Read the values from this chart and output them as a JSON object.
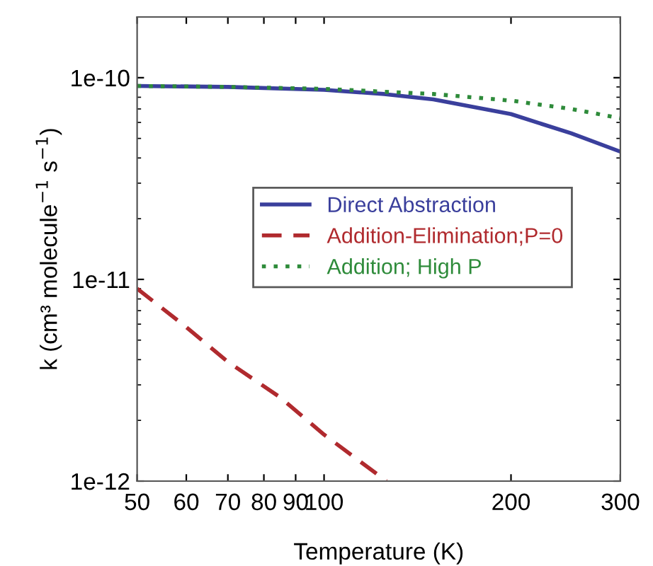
{
  "chart_data": {
    "type": "line",
    "xlabel": "Temperature (K)",
    "ylabel": "k (cm³ molecule$^{−1}$ s$^{−1}$)",
    "log": "xy",
    "xlim": [
      50,
      300
    ],
    "xticks": [
      50,
      60,
      70,
      80,
      90,
      100,
      200,
      300
    ],
    "ylim": [
      1e-12,
      2e-10
    ],
    "yticks": [
      {
        "value": 1e-12,
        "label": "1e-12"
      },
      {
        "value": 1e-11,
        "label": "1e-11"
      },
      {
        "value": 1e-10,
        "label": "1e-10"
      }
    ],
    "legend": "center",
    "grid": false,
    "marker": "none",
    "series": [
      {
        "name": "Direct Abstraction",
        "color": "#3a3f9c",
        "line_style": "solid",
        "x": [
          50,
          70,
          100,
          125,
          150,
          200,
          250,
          300
        ],
        "values": [
          9.1e-11,
          9e-11,
          8.7e-11,
          8.3e-11,
          7.8e-11,
          6.6e-11,
          5.3e-11,
          4.3e-11
        ]
      },
      {
        "name": "Addition-Elimination;P=0",
        "color": "#b02a2e",
        "line_style": "dashed",
        "x": [
          50,
          60,
          70,
          85,
          100,
          126
        ],
        "values": [
          9e-12,
          5.8e-12,
          3.9e-12,
          2.6e-12,
          1.7e-12,
          1e-12
        ]
      },
      {
        "name": "Addition; High P",
        "color": "#2e8b3a",
        "line_style": "dotted",
        "x": [
          50,
          70,
          100,
          150,
          200,
          250,
          300
        ],
        "values": [
          9.1e-11,
          9e-11,
          8.8e-11,
          8.3e-11,
          7.7e-11,
          7e-11,
          6.3e-11
        ]
      }
    ]
  }
}
